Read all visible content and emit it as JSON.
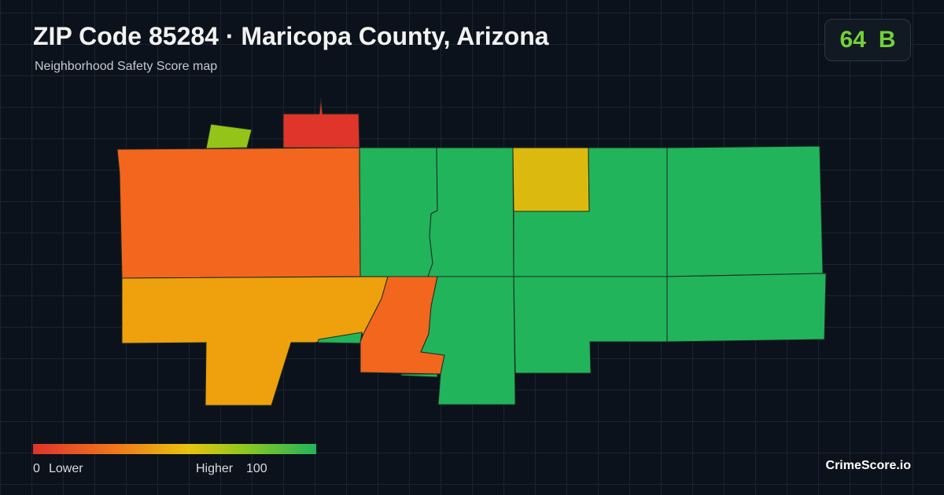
{
  "header": {
    "title": "ZIP Code 85284 · Maricopa County, Arizona",
    "subtitle": "Neighborhood Safety Score map"
  },
  "score": {
    "value": "64",
    "grade": "B"
  },
  "legend": {
    "min": "0",
    "min_label": "Lower",
    "max_label": "Higher",
    "max": "100"
  },
  "brand": "CrimeScore.io"
}
